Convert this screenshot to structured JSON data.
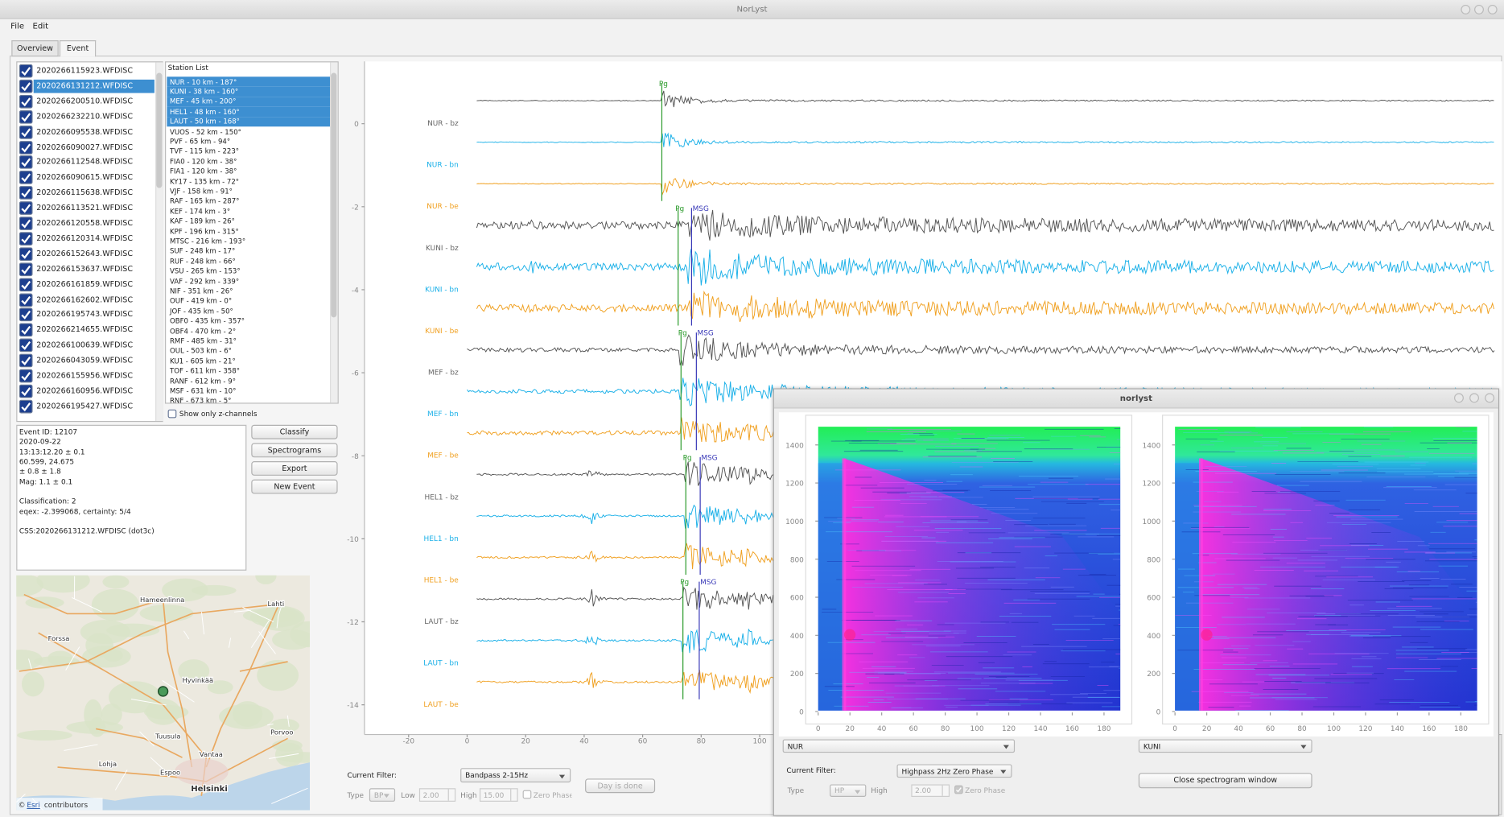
{
  "window": {
    "title": "NorLyst"
  },
  "menu": [
    "File",
    "Edit"
  ],
  "tabs": [
    "Overview",
    "Event"
  ],
  "files": [
    "2020266115923.WFDISC",
    "2020266131212.WFDISC",
    "2020266200510.WFDISC",
    "2020266232210.WFDISC",
    "2020266095538.WFDISC",
    "2020266090027.WFDISC",
    "2020266112548.WFDISC",
    "2020266090615.WFDISC",
    "2020266115638.WFDISC",
    "2020266113521.WFDISC",
    "2020266120558.WFDISC",
    "2020266120314.WFDISC",
    "2020266152643.WFDISC",
    "2020266153637.WFDISC",
    "2020266161859.WFDISC",
    "2020266162602.WFDISC",
    "2020266195743.WFDISC",
    "2020266214655.WFDISC",
    "2020266100639.WFDISC",
    "2020266043059.WFDISC",
    "2020266155956.WFDISC",
    "2020266160956.WFDISC",
    "2020266195427.WFDISC"
  ],
  "station_list": {
    "title": "Station List",
    "items": [
      "NUR - 10 km - 187°",
      "KUNI - 38 km - 160°",
      "MEF - 45 km - 200°",
      "HEL1 - 48 km - 160°",
      "LAUT - 50 km - 168°",
      "VUOS - 52 km - 150°",
      "PVF - 65 km - 94°",
      "TVF - 115 km - 223°",
      "FIA0 - 120 km - 38°",
      "FIA1 - 120 km - 38°",
      "KY17 - 135 km - 72°",
      "VJF - 158 km - 91°",
      "RAF - 165 km - 287°",
      "KEF - 174 km - 3°",
      "KAF - 189 km - 26°",
      "KPF - 196 km - 315°",
      "MTSC - 216 km - 193°",
      "SUF - 248 km - 17°",
      "RUF - 248 km - 66°",
      "VSU - 265 km - 153°",
      "VAF - 292 km - 339°",
      "NIF - 351 km - 26°",
      "OUF - 419 km - 0°",
      "JOF - 435 km - 50°",
      "OBF0 - 435 km - 357°",
      "OBF4 - 470 km - 2°",
      "RMF - 485 km - 31°",
      "OUL - 503 km - 6°",
      "KU1 - 605 km - 21°",
      "TOF - 611 km - 358°",
      "RANF - 612 km - 9°",
      "MSF - 631 km - 10°",
      "RNF - 673 km - 5°"
    ],
    "z_only": "Show only z-channels"
  },
  "event_info": [
    "Event ID: 12107",
    "2020-09-22",
    "13:13:12.20 ± 0.1",
    "60.599, 24.675",
    "± 0.8 ± 1.8",
    "Mag: 1.1 ± 0.1",
    "Classification: 2",
    "eqex: -2.399068, certainty: 5/4",
    "CSS:2020266131212.WFDISC  (dot3c)"
  ],
  "buttons": [
    "Classify",
    "Spectrograms",
    "Export",
    "New Event"
  ],
  "map": {
    "places": [
      "Hameenlinna",
      "Lahti",
      "Forssa",
      "Hyvinkää",
      "Tuusula",
      "Porvoo",
      "Vantaa",
      "Lohja",
      "Espoo",
      "Helsinki"
    ],
    "attribution": [
      "©",
      "Esri",
      "contributors"
    ]
  },
  "plot": {
    "traces": [
      "NUR - bz",
      "NUR - bn",
      "NUR - be",
      "KUNI - bz",
      "KUNI - bn",
      "KUNI - be",
      "MEF - bz",
      "MEF - bn",
      "MEF - be",
      "HEL1 - bz",
      "HEL1 - bn",
      "HEL1 - be",
      "LAUT - bz",
      "LAUT - bn",
      "LAUT - be"
    ],
    "yticks": [
      0,
      -2,
      -4,
      -6,
      -8,
      -10,
      -12,
      -14
    ],
    "xticks": [
      -20,
      0,
      20,
      40,
      60,
      80,
      100
    ],
    "picks": [
      [
        "Pg"
      ],
      [
        "Pg",
        "MSG"
      ],
      [
        "Pg",
        "MSG"
      ],
      [
        "Pg",
        "MSG"
      ],
      [
        "Pg",
        "MSG"
      ]
    ]
  },
  "filter": {
    "label": "Current Filter:",
    "value": "Bandpass 2-15Hz",
    "type_label": "Type",
    "type": "BP",
    "low_label": "Low",
    "low": "2.00",
    "high_label": "High",
    "high": "15.00",
    "zero_phase": "Zero Phase",
    "button": "Day is done"
  },
  "spectrogram_window": {
    "title": "norlyst",
    "yticks": [
      0,
      200,
      400,
      600,
      800,
      1000,
      1200,
      1400
    ],
    "xticks": [
      0,
      20,
      40,
      60,
      80,
      100,
      120,
      140,
      160,
      180
    ],
    "stations": [
      "NUR",
      "KUNI"
    ],
    "filter": {
      "label": "Current Filter:",
      "value": "Highpass 2Hz Zero Phase",
      "type_label": "Type",
      "type": "HP",
      "high_label": "High",
      "high": "2.00",
      "zero_phase": "Zero Phase"
    },
    "close": "Close spectrogram window"
  }
}
